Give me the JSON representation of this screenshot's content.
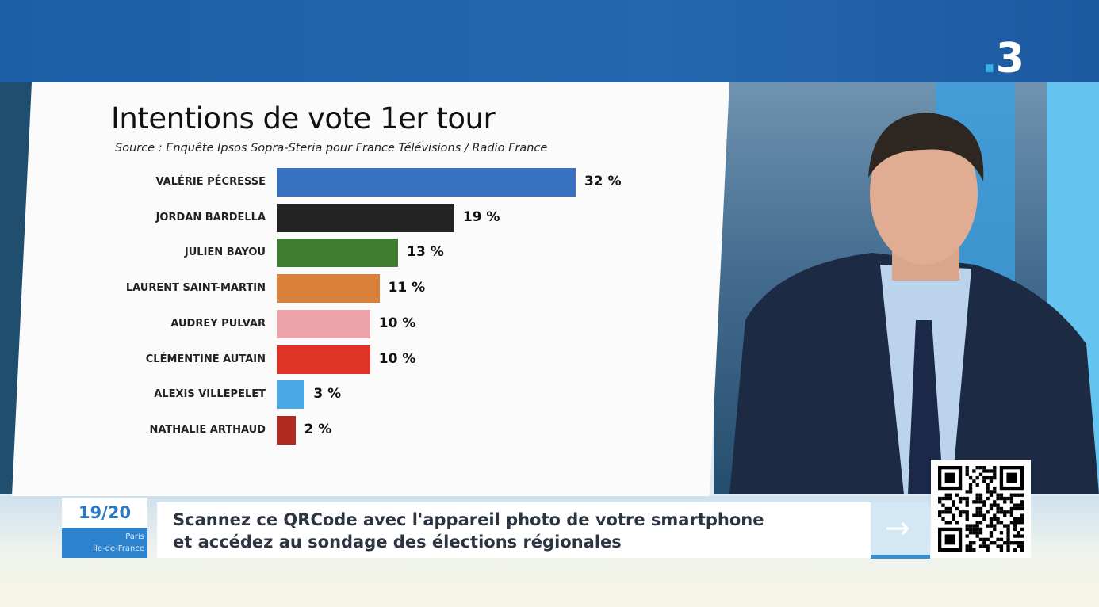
{
  "channel_logo": "3",
  "chart_data": {
    "type": "bar",
    "orientation": "horizontal",
    "title": "Intentions de vote 1er tour",
    "subtitle": "Source : Enquête Ipsos Sopra-Steria pour France Télévisions / Radio France",
    "categories": [
      "VALÉRIE PÉCRESSE",
      "JORDAN BARDELLA",
      "JULIEN BAYOU",
      "LAURENT SAINT-MARTIN",
      "AUDREY PULVAR",
      "CLÉMENTINE AUTAIN",
      "ALEXIS VILLEPELET",
      "NATHALIE ARTHAUD"
    ],
    "values": [
      32,
      19,
      13,
      11,
      10,
      10,
      3,
      2
    ],
    "value_labels": [
      "32 %",
      "19 %",
      "13 %",
      "11 %",
      "10 %",
      "10 %",
      "3 %",
      "2 %"
    ],
    "colors": [
      "#3a72c2",
      "#232323",
      "#3f7e31",
      "#d9813a",
      "#eda3aa",
      "#df3328",
      "#4aa9e4",
      "#b02a1f"
    ],
    "grid": false
  },
  "banner": {
    "time": "19/20",
    "region_line1": "Paris",
    "region_line2": "Île-de-France",
    "line1": "Scannez ce QRCode avec l'appareil photo de votre smartphone",
    "line2": "et accédez au sondage des élections régionales"
  }
}
